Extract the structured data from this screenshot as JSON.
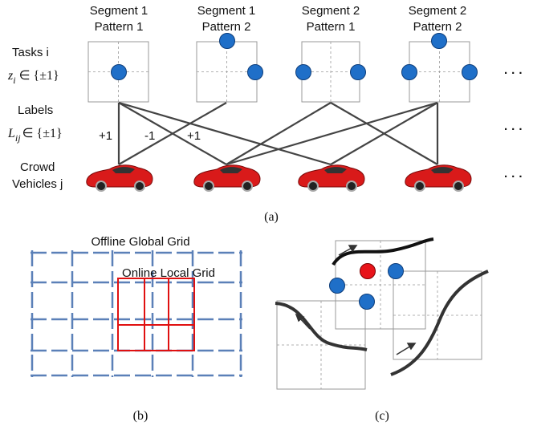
{
  "columns": [
    {
      "segment": "Segment 1",
      "pattern": "Pattern 1"
    },
    {
      "segment": "Segment 1",
      "pattern": "Pattern 2"
    },
    {
      "segment": "Segment 2",
      "pattern": "Pattern 1"
    },
    {
      "segment": "Segment 2",
      "pattern": "Pattern 2"
    }
  ],
  "left_labels": {
    "tasks": "Tasks i",
    "task_variable": {
      "base": "z",
      "sub": "i",
      "rest": "∈ {±1}"
    },
    "labels": "Labels",
    "label_variable": {
      "base": "L",
      "sub": "ij",
      "rest": "∈ {±1}"
    },
    "crowd": "Crowd",
    "vehicles": "Vehicles j"
  },
  "edge_labels": [
    "+1",
    "-1",
    "+1"
  ],
  "ellipses": [
    "· · ·",
    "· · ·",
    "· · ·"
  ],
  "captions": {
    "a": "(a)",
    "b": "(b)",
    "c": "(c)"
  },
  "grid_labels": {
    "global": "Offline Global Grid",
    "local": "Online Local Grid"
  }
}
